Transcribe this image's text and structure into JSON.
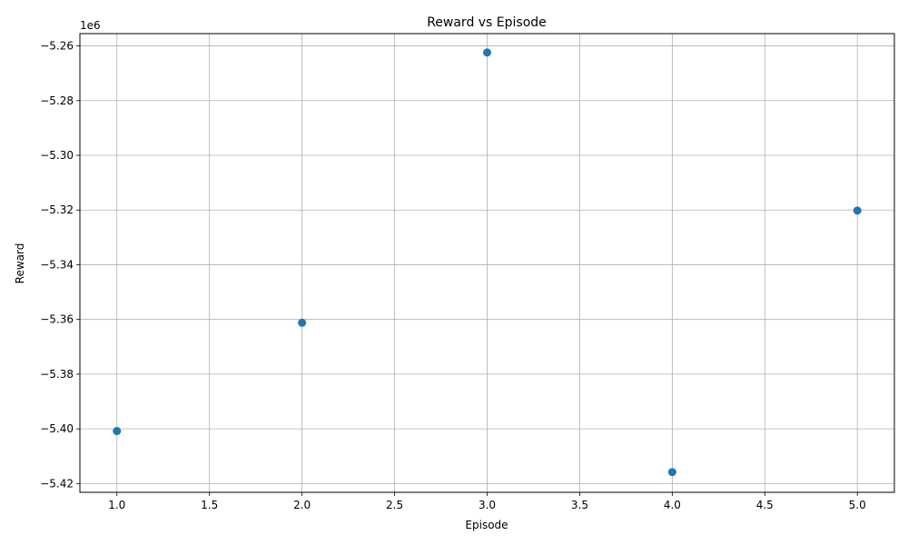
{
  "chart_data": {
    "type": "scatter",
    "title": "Reward vs Episode",
    "xlabel": "Episode",
    "ylabel": "Reward",
    "offset_text": "1e6",
    "x_ticks": [
      1.0,
      1.5,
      2.0,
      2.5,
      3.0,
      3.5,
      4.0,
      4.5,
      5.0
    ],
    "x_tick_labels": [
      "1.0",
      "1.5",
      "2.0",
      "2.5",
      "3.0",
      "3.5",
      "4.0",
      "4.5",
      "5.0"
    ],
    "y_ticks": [
      -5.42,
      -5.4,
      -5.38,
      -5.36,
      -5.34,
      -5.32,
      -5.3,
      -5.28,
      -5.26
    ],
    "y_tick_labels": [
      "−5.42",
      "−5.40",
      "−5.38",
      "−5.36",
      "−5.34",
      "−5.32",
      "−5.30",
      "−5.28",
      "−5.26"
    ],
    "xlim": [
      0.8,
      5.2
    ],
    "ylim": [
      -5.4232,
      -5.2555
    ],
    "grid": true,
    "point_color": "#1f77b4",
    "points": [
      {
        "x": 1,
        "y": -5.4008
      },
      {
        "x": 2,
        "y": -5.3612
      },
      {
        "x": 3,
        "y": -5.2624
      },
      {
        "x": 4,
        "y": -5.4158
      },
      {
        "x": 5,
        "y": -5.3202
      }
    ]
  }
}
